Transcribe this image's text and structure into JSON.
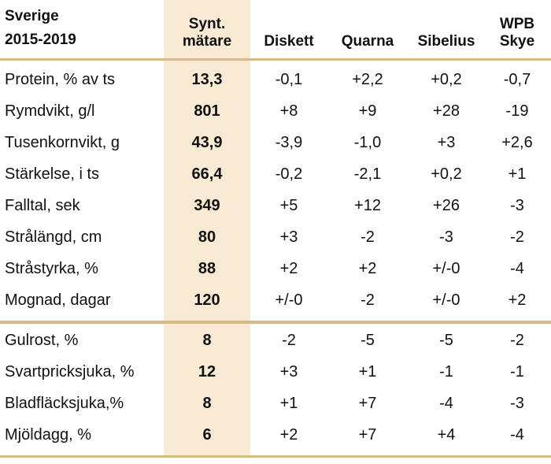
{
  "header": {
    "region": "Sverige",
    "period": "2015-2019",
    "synt_line1": "Synt.",
    "synt_line2": "mätare",
    "col_diskett": "Diskett",
    "col_quarna": "Quarna",
    "col_sibelius": "Sibelius",
    "col_wpb_line1": "WPB",
    "col_wpb_line2": "Skye"
  },
  "rows": [
    {
      "label": "Protein, % av ts",
      "synt": "13,3",
      "diskett": "-0,1",
      "quarna": "+2,2",
      "sibelius": "+0,2",
      "wpb": "-0,7"
    },
    {
      "label": "Rymdvikt, g/l",
      "synt": "801",
      "diskett": "+8",
      "quarna": "+9",
      "sibelius": "+28",
      "wpb": "-19"
    },
    {
      "label": "Tusenkornvikt, g",
      "synt": "43,9",
      "diskett": "-3,9",
      "quarna": "-1,0",
      "sibelius": "+3",
      "wpb": "+2,6"
    },
    {
      "label": "Stärkelse, i ts",
      "synt": "66,4",
      "diskett": "-0,2",
      "quarna": "-2,1",
      "sibelius": "+0,2",
      "wpb": "+1"
    },
    {
      "label": "Falltal, sek",
      "synt": "349",
      "diskett": "+5",
      "quarna": "+12",
      "sibelius": "+26",
      "wpb": "-3"
    },
    {
      "label": "Strålängd, cm",
      "synt": "80",
      "diskett": "+3",
      "quarna": "-2",
      "sibelius": "-3",
      "wpb": "-2"
    },
    {
      "label": "Stråstyrka, %",
      "synt": "88",
      "diskett": "+2",
      "quarna": "+2",
      "sibelius": "+/-0",
      "wpb": "-4"
    },
    {
      "label": "Mognad, dagar",
      "synt": "120",
      "diskett": "+/-0",
      "quarna": "-2",
      "sibelius": "+/-0",
      "wpb": "+2"
    },
    {
      "label": "Gulrost, %",
      "synt": "8",
      "diskett": "-2",
      "quarna": "-5",
      "sibelius": "-5",
      "wpb": "-2"
    },
    {
      "label": "Svartpricksjuka, %",
      "synt": "12",
      "diskett": "+3",
      "quarna": "+1",
      "sibelius": "-1",
      "wpb": "-1"
    },
    {
      "label": "Bladfläcksjuka,%",
      "synt": "8",
      "diskett": "+1",
      "quarna": "+7",
      "sibelius": "-4",
      "wpb": "-3"
    },
    {
      "label": "Mjöldagg, %",
      "synt": "6",
      "diskett": "+2",
      "quarna": "+7",
      "sibelius": "+4",
      "wpb": "-4"
    }
  ],
  "colors": {
    "shade": "#f8ead3",
    "rule": "#d9b98a"
  }
}
